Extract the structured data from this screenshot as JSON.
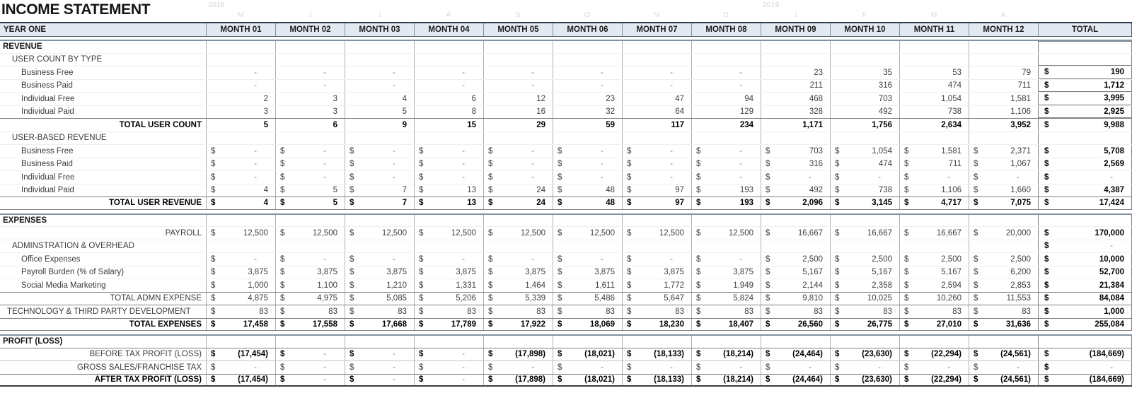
{
  "title": "INCOME STATEMENT",
  "theme": {
    "header_fill": "#e3e9f1",
    "header_border_dark": "#2d3c4e",
    "header_border": "#44546a",
    "grid_vertical": "#a9b0b8",
    "grid_medium": "#7f7f7f",
    "section_divider": "#8493a2",
    "value_text": "#3f3f3f",
    "dash_text": "#7f7f7f",
    "faint_text": "#d9d9d9"
  },
  "faint": {
    "years": [
      {
        "label": "2018",
        "month_index": 0
      },
      {
        "label": "2019",
        "month_index": 8
      }
    ],
    "letters": [
      "M",
      "J",
      "J",
      "A",
      "S",
      "O",
      "N",
      "D",
      "J",
      "F",
      "M",
      "A"
    ]
  },
  "table": {
    "corner_label": "YEAR ONE",
    "month_headers": [
      "MONTH 01",
      "MONTH 02",
      "MONTH 03",
      "MONTH 04",
      "MONTH 05",
      "MONTH 06",
      "MONTH 07",
      "MONTH 08",
      "MONTH 09",
      "MONTH 10",
      "MONTH 11",
      "MONTH 12"
    ],
    "total_label": "TOTAL",
    "currency_symbol": "$",
    "rows": [
      {
        "label": "REVENUE",
        "cls": "section tbox-top",
        "cur": false,
        "total": ""
      },
      {
        "label": "USER COUNT BY TYPE",
        "cls": "subsection tbox-bot",
        "cur": false,
        "total": ""
      },
      {
        "label": "Business Free",
        "cls": "item tbox-bot",
        "cur": false,
        "values": [
          "-",
          "-",
          "-",
          "-",
          "-",
          "-",
          "-",
          "-",
          "23",
          "35",
          "53",
          "79"
        ],
        "total": "190"
      },
      {
        "label": "Business Paid",
        "cls": "item tbox-bot",
        "cur": false,
        "values": [
          "-",
          "-",
          "-",
          "-",
          "-",
          "-",
          "-",
          "-",
          "211",
          "316",
          "474",
          "711"
        ],
        "total": "1,712"
      },
      {
        "label": "Individual Free",
        "cls": "item tbox-bot",
        "cur": false,
        "values": [
          "2",
          "3",
          "4",
          "6",
          "12",
          "23",
          "47",
          "94",
          "468",
          "703",
          "1,054",
          "1,581"
        ],
        "total": "3,995"
      },
      {
        "label": "Individual Paid",
        "cls": "item tbox-bot",
        "cur": false,
        "values": [
          "3",
          "3",
          "5",
          "8",
          "16",
          "32",
          "64",
          "129",
          "328",
          "492",
          "738",
          "1,106"
        ],
        "total": "2,925"
      },
      {
        "label": "TOTAL USER COUNT",
        "cls": "rlabel lbold totalrow vb",
        "cur": false,
        "values": [
          "5",
          "6",
          "9",
          "15",
          "29",
          "59",
          "117",
          "234",
          "1,171",
          "1,756",
          "2,634",
          "3,952"
        ],
        "total": "9,988"
      },
      {
        "label": "USER-BASED REVENUE",
        "cls": "subsection",
        "cur": false,
        "total": ""
      },
      {
        "label": "Business Free",
        "cls": "item",
        "cur": true,
        "values": [
          "-",
          "-",
          "-",
          "-",
          "-",
          "-",
          "-",
          "-",
          "703",
          "1,054",
          "1,581",
          "2,371"
        ],
        "total": "5,708"
      },
      {
        "label": "Business Paid",
        "cls": "item",
        "cur": true,
        "values": [
          "-",
          "-",
          "-",
          "-",
          "-",
          "-",
          "-",
          "-",
          "316",
          "474",
          "711",
          "1,067"
        ],
        "total": "2,569"
      },
      {
        "label": "Individual Free",
        "cls": "item",
        "cur": true,
        "values": [
          "-",
          "-",
          "-",
          "-",
          "-",
          "-",
          "-",
          "-",
          "-",
          "-",
          "-",
          "-"
        ],
        "total": "-"
      },
      {
        "label": "Individual Paid",
        "cls": "item",
        "cur": true,
        "values": [
          "4",
          "5",
          "7",
          "13",
          "24",
          "48",
          "97",
          "193",
          "492",
          "738",
          "1,106",
          "1,660"
        ],
        "total": "4,387"
      },
      {
        "label": "TOTAL USER REVENUE",
        "cls": "rlabel lbold totalrow strong vb",
        "cur": true,
        "values": [
          "4",
          "5",
          "7",
          "13",
          "24",
          "48",
          "97",
          "193",
          "2,096",
          "3,145",
          "4,717",
          "7,075"
        ],
        "total": "17,424"
      },
      {
        "cls": "spacer"
      },
      {
        "label": "EXPENSES",
        "cls": "section",
        "cur": false,
        "total": ""
      },
      {
        "label": "PAYROLL",
        "cls": "rlabel",
        "cur": true,
        "values": [
          "12,500",
          "12,500",
          "12,500",
          "12,500",
          "12,500",
          "12,500",
          "12,500",
          "12,500",
          "16,667",
          "16,667",
          "16,667",
          "20,000"
        ],
        "total": "170,000"
      },
      {
        "label": "ADMINSTRATION & OVERHEAD",
        "cls": "subsection",
        "cur": false,
        "total": "-"
      },
      {
        "label": "Office Expenses",
        "cls": "item",
        "cur": true,
        "values": [
          "-",
          "-",
          "-",
          "-",
          "-",
          "-",
          "-",
          "-",
          "2,500",
          "2,500",
          "2,500",
          "2,500"
        ],
        "total": "10,000"
      },
      {
        "label": "Payroll Burden (% of Salary)",
        "cls": "item",
        "cur": true,
        "values": [
          "3,875",
          "3,875",
          "3,875",
          "3,875",
          "3,875",
          "3,875",
          "3,875",
          "3,875",
          "5,167",
          "5,167",
          "5,167",
          "6,200"
        ],
        "total": "52,700"
      },
      {
        "label": "Social Media Marketing",
        "cls": "item",
        "cur": true,
        "values": [
          "1,000",
          "1,100",
          "1,210",
          "1,331",
          "1,464",
          "1,611",
          "1,772",
          "1,949",
          "2,144",
          "2,358",
          "2,594",
          "2,853"
        ],
        "total": "21,384"
      },
      {
        "label": "TOTAL ADMN EXPENSE",
        "cls": "rlabel totalrow",
        "cur": true,
        "values": [
          "4,875",
          "4,975",
          "5,085",
          "5,206",
          "5,339",
          "5,486",
          "5,647",
          "5,824",
          "9,810",
          "10,025",
          "10,260",
          "11,553"
        ],
        "total": "84,084"
      },
      {
        "label": "TECHNOLOGY & THIRD PARTY DEVELOPMENT",
        "cls": "totalrow",
        "cur": true,
        "values": [
          "83",
          "83",
          "83",
          "83",
          "83",
          "83",
          "83",
          "83",
          "83",
          "83",
          "83",
          "83"
        ],
        "total": "1,000"
      },
      {
        "label": "TOTAL EXPENSES",
        "cls": "rlabel lbold totalrow strong vb",
        "cur": true,
        "values": [
          "17,458",
          "17,558",
          "17,668",
          "17,789",
          "17,922",
          "18,069",
          "18,230",
          "18,407",
          "26,560",
          "26,775",
          "27,010",
          "31,636"
        ],
        "total": "255,084"
      },
      {
        "cls": "spacer"
      },
      {
        "label": "PROFIT (LOSS)",
        "cls": "section",
        "cur": false,
        "total": ""
      },
      {
        "label": "BEFORE TAX PROFIT (LOSS)",
        "cls": "rlabel totalrow vb",
        "cur": true,
        "values": [
          "(17,454)",
          "-",
          "-",
          "-",
          "(17,898)",
          "(18,021)",
          "(18,133)",
          "(18,214)",
          "(24,464)",
          "(23,630)",
          "(22,294)",
          "(24,561)"
        ],
        "total": "(184,669)"
      },
      {
        "label": "GROSS SALES/FRANCHISE TAX",
        "cls": "rlabel ltop",
        "cur": true,
        "values": [
          "-",
          "-",
          "-",
          "-",
          "-",
          "-",
          "-",
          "-",
          "-",
          "-",
          "-",
          "-"
        ],
        "total": "-"
      },
      {
        "label": "AFTER TAX PROFIT (LOSS)",
        "cls": "rlabel lbold totalrow final vb",
        "cur": true,
        "values": [
          "(17,454)",
          "-",
          "-",
          "-",
          "(17,898)",
          "(18,021)",
          "(18,133)",
          "(18,214)",
          "(24,464)",
          "(23,630)",
          "(22,294)",
          "(24,561)"
        ],
        "total": "(184,669)"
      }
    ]
  }
}
